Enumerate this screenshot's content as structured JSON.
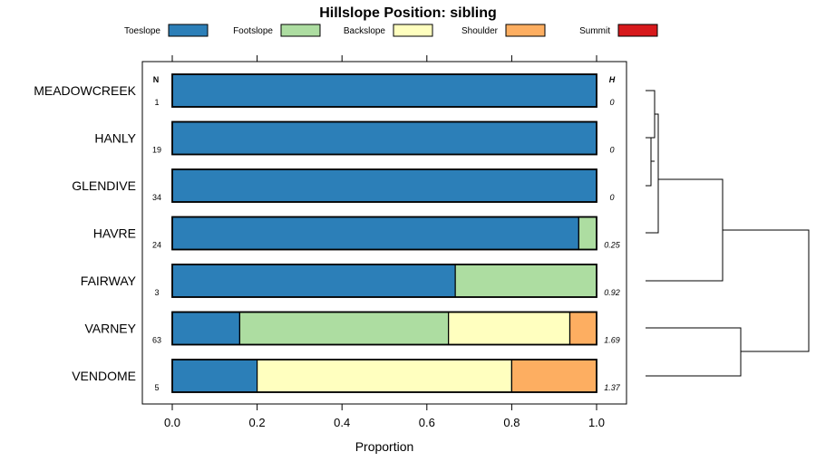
{
  "chart_data": {
    "type": "bar",
    "orientation": "horizontal",
    "stacked": true,
    "title": "Hillslope Position: sibling",
    "xlabel": "Proportion",
    "ylabel": "",
    "xlim": [
      0,
      1
    ],
    "x_ticks": [
      "0.0",
      "0.2",
      "0.4",
      "0.6",
      "0.8",
      "1.0"
    ],
    "legend_position": "top",
    "n_header": "N",
    "h_header": "H",
    "categories": [
      "MEADOWCREEK",
      "HANLY",
      "GLENDIVE",
      "HAVRE",
      "FAIRWAY",
      "VARNEY",
      "VENDOME"
    ],
    "n": [
      "1",
      "19",
      "34",
      "24",
      "3",
      "63",
      "5"
    ],
    "h": [
      "0",
      "0",
      "0",
      "0.25",
      "0.92",
      "1.69",
      "1.37"
    ],
    "series": [
      {
        "name": "Toeslope",
        "color": "#2c7fb8",
        "values": [
          1.0,
          1.0,
          1.0,
          0.958,
          0.667,
          0.159,
          0.2
        ]
      },
      {
        "name": "Footslope",
        "color": "#addda1",
        "values": [
          0.0,
          0.0,
          0.0,
          0.042,
          0.333,
          0.492,
          0.0
        ]
      },
      {
        "name": "Backslope",
        "color": "#ffffbf",
        "values": [
          0.0,
          0.0,
          0.0,
          0.0,
          0.0,
          0.286,
          0.6
        ]
      },
      {
        "name": "Shoulder",
        "color": "#fdae61",
        "values": [
          0.0,
          0.0,
          0.0,
          0.0,
          0.0,
          0.063,
          0.2
        ]
      },
      {
        "name": "Summit",
        "color": "#d7191c",
        "values": [
          0.0,
          0.0,
          0.0,
          0.0,
          0.0,
          0.0,
          0.0
        ]
      }
    ],
    "dendrogram": "clustering of sites by hillslope position proportions"
  }
}
